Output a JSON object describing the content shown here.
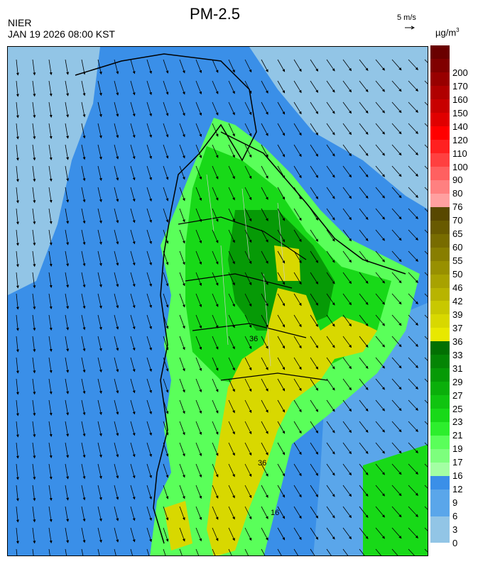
{
  "header": {
    "title": "PM-2.5",
    "org": "NIER",
    "datetime": "JAN 19 2026 08:00 KST",
    "wind_reference": "5 m/s",
    "unit_main": "µg/m",
    "unit_sup": "3"
  },
  "map": {
    "contour_labels": [
      "36",
      "36",
      "16"
    ]
  },
  "legend": {
    "bins": [
      {
        "label": "0",
        "color": "#92c5e6"
      },
      {
        "label": "3",
        "color": "#92c5e6"
      },
      {
        "label": "6",
        "color": "#5aa6ea"
      },
      {
        "label": "9",
        "color": "#5aa6ea"
      },
      {
        "label": "12",
        "color": "#3a8fe8"
      },
      {
        "label": "16",
        "color": "#a3ffa3"
      },
      {
        "label": "17",
        "color": "#7dff7d"
      },
      {
        "label": "19",
        "color": "#5aff5a"
      },
      {
        "label": "21",
        "color": "#2dee2d"
      },
      {
        "label": "23",
        "color": "#18d918"
      },
      {
        "label": "25",
        "color": "#10c410"
      },
      {
        "label": "27",
        "color": "#0aaf0a"
      },
      {
        "label": "29",
        "color": "#069a06"
      },
      {
        "label": "31",
        "color": "#048504"
      },
      {
        "label": "33",
        "color": "#027002"
      },
      {
        "label": "36",
        "color": "#e8e800"
      },
      {
        "label": "37",
        "color": "#d8d800"
      },
      {
        "label": "39",
        "color": "#c8c800"
      },
      {
        "label": "42",
        "color": "#b8b400"
      },
      {
        "label": "46",
        "color": "#a8a200"
      },
      {
        "label": "50",
        "color": "#989000"
      },
      {
        "label": "55",
        "color": "#887e00"
      },
      {
        "label": "60",
        "color": "#786c00"
      },
      {
        "label": "65",
        "color": "#685a00"
      },
      {
        "label": "70",
        "color": "#584800"
      },
      {
        "label": "76",
        "color": "#ffa0a0"
      },
      {
        "label": "80",
        "color": "#ff8080"
      },
      {
        "label": "90",
        "color": "#ff6060"
      },
      {
        "label": "100",
        "color": "#ff4040"
      },
      {
        "label": "110",
        "color": "#ff2020"
      },
      {
        "label": "120",
        "color": "#ff0000"
      },
      {
        "label": "140",
        "color": "#e00000"
      },
      {
        "label": "150",
        "color": "#c80000"
      },
      {
        "label": "160",
        "color": "#b00000"
      },
      {
        "label": "170",
        "color": "#980000"
      },
      {
        "label": "200",
        "color": "#800000"
      }
    ],
    "top_color": "#6a0000"
  }
}
